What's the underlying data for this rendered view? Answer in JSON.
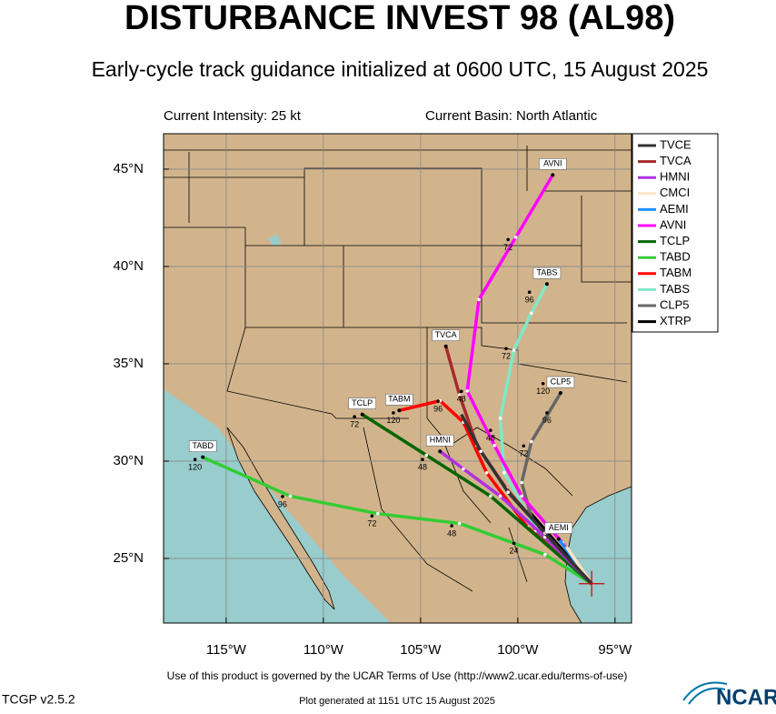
{
  "header": {
    "title": "DISTURBANCE INVEST 98 (AL98)",
    "subtitle": "Early-cycle track guidance initialized at 0600 UTC, 15 August 2025",
    "intensity": "Current Intensity: 25 kt",
    "basin": "Current Basin: North Atlantic"
  },
  "map": {
    "xlim": [
      -118.22,
      -94.15
    ],
    "ylim": [
      21.68,
      46.82
    ],
    "xticks": [
      {
        "value": -115,
        "label": "115°W"
      },
      {
        "value": -110,
        "label": "110°W"
      },
      {
        "value": -105,
        "label": "105°W"
      },
      {
        "value": -100,
        "label": "100°W"
      },
      {
        "value": -95,
        "label": "95°W"
      }
    ],
    "yticks": [
      {
        "value": 25,
        "label": "25°N"
      },
      {
        "value": 30,
        "label": "30°N"
      },
      {
        "value": 35,
        "label": "35°N"
      },
      {
        "value": 40,
        "label": "40°N"
      },
      {
        "value": 45,
        "label": "45°N"
      }
    ],
    "grid": true,
    "initial_position": {
      "lon": -96.2,
      "lat": 23.7
    },
    "series": [
      {
        "name": "TVCE",
        "color": "#333333",
        "end_label": false,
        "lons": [
          -96.2,
          -98.6,
          -100.5,
          -101.9,
          -102.9
        ],
        "lats": [
          23.7,
          26.3,
          28.4,
          30.5,
          32.4
        ]
      },
      {
        "name": "TVCA",
        "color": "#a52a2a",
        "end_label": true,
        "lons": [
          -96.2,
          -98.7,
          -100.6,
          -102.1,
          -103.0,
          -103.7
        ],
        "lats": [
          23.7,
          26.4,
          28.6,
          30.8,
          33.4,
          35.9
        ]
      },
      {
        "name": "HMNI",
        "color": "#b030e0",
        "end_label": true,
        "lons": [
          -96.2,
          -98.6,
          -100.9,
          -102.8,
          -104.0
        ],
        "lats": [
          23.7,
          26.1,
          28.2,
          29.6,
          30.5
        ]
      },
      {
        "name": "CMCI",
        "color": "#ffe4c4",
        "end_label": false,
        "lons": [
          -96.2,
          -97.5
        ],
        "lats": [
          23.7,
          25.6
        ]
      },
      {
        "name": "AEMI",
        "color": "#1e90ff",
        "end_label": true,
        "lons": [
          -96.2,
          -97.9
        ],
        "lats": [
          23.7,
          26.0
        ]
      },
      {
        "name": "AVNI",
        "color": "#ff00ff",
        "end_label": true,
        "lons": [
          -96.2,
          -97.7,
          -99.8,
          -101.2,
          -102.6,
          -102.0,
          -100.1,
          -98.2
        ],
        "lats": [
          23.7,
          25.8,
          28.2,
          30.8,
          33.6,
          38.3,
          41.5,
          44.7
        ]
      },
      {
        "name": "TCLP",
        "color": "#006400",
        "end_label": true,
        "lons": [
          -96.2,
          -101.4,
          -104.7,
          -108.0
        ],
        "lats": [
          23.7,
          28.2,
          30.3,
          32.4
        ]
      },
      {
        "name": "TABD",
        "color": "#32cd32",
        "end_label": true,
        "lons": [
          -96.2,
          -98.6,
          -103.0,
          -107.2,
          -111.7,
          -116.2
        ],
        "lats": [
          23.7,
          25.2,
          26.8,
          27.3,
          28.2,
          30.2
        ]
      },
      {
        "name": "TABM",
        "color": "#ff0000",
        "end_label": true,
        "lons": [
          -96.2,
          -99.5,
          -101.6,
          -102.8,
          -104.0,
          -106.1
        ],
        "lats": [
          23.7,
          26.6,
          29.4,
          32.0,
          33.1,
          32.6
        ]
      },
      {
        "name": "TABS",
        "color": "#7fe8c8",
        "end_label": true,
        "lons": [
          -96.2,
          -99.1,
          -100.7,
          -100.9,
          -100.2,
          -99.3,
          -98.5
        ],
        "lats": [
          23.7,
          26.6,
          29.4,
          32.2,
          35.7,
          37.6,
          39.1
        ]
      },
      {
        "name": "CLP5",
        "color": "#666666",
        "end_label": true,
        "lons": [
          -96.2,
          -99.1,
          -99.8,
          -99.3,
          -97.8
        ],
        "lats": [
          23.7,
          26.4,
          28.9,
          31.0,
          33.5
        ]
      },
      {
        "name": "XTRP",
        "color": "#000000",
        "end_label": false,
        "lons": [
          -96.2,
          -99.5
        ],
        "lats": [
          23.7,
          27.5
        ]
      }
    ],
    "hour_labels": [
      {
        "text": 72,
        "lon": -100.5,
        "lat": 41.1
      },
      {
        "text": 96,
        "lon": -99.4,
        "lat": 38.4
      },
      {
        "text": 72,
        "lon": -100.6,
        "lat": 35.5
      },
      {
        "text": 120,
        "lon": -98.7,
        "lat": 33.7
      },
      {
        "text": 96,
        "lon": -98.5,
        "lat": 32.2
      },
      {
        "text": 72,
        "lon": -99.7,
        "lat": 30.5
      },
      {
        "text": 120,
        "lon": -106.4,
        "lat": 32.2
      },
      {
        "text": 96,
        "lon": -104.1,
        "lat": 32.8
      },
      {
        "text": 72,
        "lon": -108.4,
        "lat": 32.0
      },
      {
        "text": 48,
        "lon": -104.9,
        "lat": 29.8
      },
      {
        "text": 120,
        "lon": -116.6,
        "lat": 29.8
      },
      {
        "text": 96,
        "lon": -112.1,
        "lat": 27.9
      },
      {
        "text": 72,
        "lon": -107.5,
        "lat": 26.9
      },
      {
        "text": 48,
        "lon": -103.4,
        "lat": 26.4
      },
      {
        "text": 24,
        "lon": -100.2,
        "lat": 25.5
      },
      {
        "text": 48,
        "lon": -102.9,
        "lat": 33.3
      },
      {
        "text": 48,
        "lon": -101.4,
        "lat": 31.3
      }
    ]
  },
  "footer": {
    "terms": "Use of this product is governed by the UCAR Terms of Use (http://www2.ucar.edu/terms-of-use)",
    "version": "TCGP v2.5.2",
    "generated": "Plot generated at 1151 UTC   15 August 2025",
    "logo": "NCAR"
  }
}
